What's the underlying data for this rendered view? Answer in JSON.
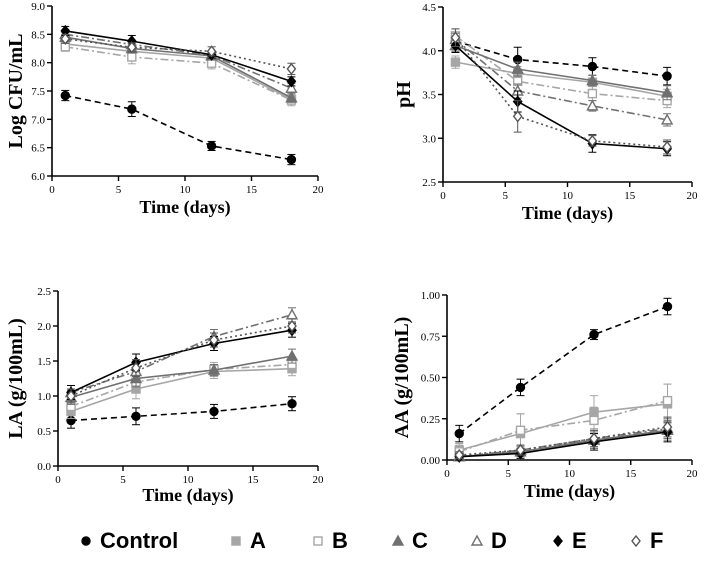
{
  "legend": {
    "items": [
      {
        "label": "Control",
        "color": "#000000",
        "marker": "circle",
        "fill": true,
        "dash": "6,4"
      },
      {
        "label": "A",
        "color": "#a6a6a6",
        "marker": "square",
        "fill": true,
        "dash": ""
      },
      {
        "label": "B",
        "color": "#a6a6a6",
        "marker": "square",
        "fill": false,
        "dash": "8,3,2,3"
      },
      {
        "label": "C",
        "color": "#707070",
        "marker": "triangle",
        "fill": true,
        "dash": ""
      },
      {
        "label": "D",
        "color": "#707070",
        "marker": "triangle",
        "fill": false,
        "dash": "8,3,2,3"
      },
      {
        "label": "E",
        "color": "#000000",
        "marker": "diamond",
        "fill": true,
        "dash": ""
      },
      {
        "label": "F",
        "color": "#555555",
        "marker": "diamond",
        "fill": false,
        "dash": "2,3"
      }
    ]
  },
  "chart_data": [
    {
      "type": "line",
      "panel": "top-left",
      "xlabel": "Time (days)",
      "ylabel": "Log CFU/mL",
      "xlim": [
        0,
        20
      ],
      "xticks": [
        0,
        5,
        10,
        15,
        20
      ],
      "ylim": [
        6.0,
        9.0
      ],
      "yticks": [
        6.0,
        6.5,
        7.0,
        7.5,
        8.0,
        8.5,
        9.0
      ],
      "ydec": 1,
      "x": [
        1,
        6,
        12,
        18
      ],
      "series": [
        {
          "name": "Control",
          "values": [
            7.42,
            7.18,
            6.53,
            6.29
          ],
          "err": [
            0.09,
            0.13,
            0.08,
            0.09
          ]
        },
        {
          "name": "A",
          "values": [
            8.33,
            8.2,
            8.08,
            7.35
          ],
          "err": [
            0.08,
            0.08,
            0.08,
            0.08
          ]
        },
        {
          "name": "B",
          "values": [
            8.28,
            8.1,
            7.99,
            7.34
          ],
          "err": [
            0.08,
            0.12,
            0.1,
            0.1
          ]
        },
        {
          "name": "C",
          "values": [
            8.45,
            8.25,
            8.12,
            7.38
          ],
          "err": [
            0.08,
            0.08,
            0.06,
            0.08
          ]
        },
        {
          "name": "D",
          "values": [
            8.5,
            8.32,
            8.13,
            7.55
          ],
          "err": [
            0.08,
            0.08,
            0.06,
            0.08
          ]
        },
        {
          "name": "E",
          "values": [
            8.56,
            8.38,
            8.14,
            7.67
          ],
          "err": [
            0.08,
            0.1,
            0.06,
            0.08
          ]
        },
        {
          "name": "F",
          "values": [
            8.42,
            8.27,
            8.2,
            7.89
          ],
          "err": [
            0.08,
            0.08,
            0.08,
            0.1
          ]
        }
      ]
    },
    {
      "type": "line",
      "panel": "top-right",
      "xlabel": "Time (days)",
      "ylabel": "pH",
      "xlim": [
        0,
        20
      ],
      "xticks": [
        0,
        5,
        10,
        15,
        20
      ],
      "ylim": [
        2.5,
        4.5
      ],
      "yticks": [
        2.5,
        3.0,
        3.5,
        4.0,
        4.5
      ],
      "ydec": 1,
      "x": [
        1,
        6,
        12,
        18
      ],
      "series": [
        {
          "name": "Control",
          "values": [
            4.11,
            3.9,
            3.82,
            3.71
          ],
          "err": [
            0.1,
            0.14,
            0.1,
            0.1
          ]
        },
        {
          "name": "A",
          "values": [
            3.87,
            3.74,
            3.64,
            3.48
          ],
          "err": [
            0.07,
            0.08,
            0.08,
            0.08
          ]
        },
        {
          "name": "B",
          "values": [
            4.17,
            3.65,
            3.51,
            3.43
          ],
          "err": [
            0.08,
            0.1,
            0.08,
            0.08
          ]
        },
        {
          "name": "C",
          "values": [
            4.06,
            3.79,
            3.66,
            3.52
          ],
          "err": [
            0.07,
            0.08,
            0.06,
            0.08
          ]
        },
        {
          "name": "D",
          "values": [
            4.13,
            3.54,
            3.37,
            3.21
          ],
          "err": [
            0.07,
            0.08,
            0.06,
            0.07
          ]
        },
        {
          "name": "E",
          "values": [
            4.06,
            3.42,
            2.94,
            2.88
          ],
          "err": [
            0.08,
            0.12,
            0.1,
            0.08
          ]
        },
        {
          "name": "F",
          "values": [
            4.15,
            3.25,
            2.97,
            2.9
          ],
          "err": [
            0.1,
            0.18,
            0.06,
            0.08
          ]
        }
      ]
    },
    {
      "type": "line",
      "panel": "bottom-left",
      "xlabel": "Time (days)",
      "ylabel": "LA (g/100mL)",
      "xlim": [
        0,
        20
      ],
      "xticks": [
        0,
        5,
        10,
        15,
        20
      ],
      "ylim": [
        0.0,
        2.5
      ],
      "yticks": [
        0.0,
        0.5,
        1.0,
        1.5,
        2.0,
        2.5
      ],
      "ydec": 1,
      "x": [
        1,
        6,
        12,
        18
      ],
      "series": [
        {
          "name": "Control",
          "values": [
            0.65,
            0.71,
            0.78,
            0.89
          ],
          "err": [
            0.11,
            0.12,
            0.1,
            0.1
          ]
        },
        {
          "name": "A",
          "values": [
            0.78,
            1.1,
            1.35,
            1.39
          ],
          "err": [
            0.1,
            0.14,
            0.1,
            0.1
          ]
        },
        {
          "name": "B",
          "values": [
            0.85,
            1.2,
            1.38,
            1.45
          ],
          "err": [
            0.1,
            0.12,
            0.1,
            0.1
          ]
        },
        {
          "name": "C",
          "values": [
            0.98,
            1.25,
            1.37,
            1.57
          ],
          "err": [
            0.1,
            0.12,
            0.08,
            0.1
          ]
        },
        {
          "name": "D",
          "values": [
            1.05,
            1.35,
            1.85,
            2.16
          ],
          "err": [
            0.1,
            0.12,
            0.1,
            0.1
          ]
        },
        {
          "name": "E",
          "values": [
            1.05,
            1.48,
            1.75,
            1.94
          ],
          "err": [
            0.1,
            0.12,
            0.1,
            0.1
          ]
        },
        {
          "name": "F",
          "values": [
            1.0,
            1.4,
            1.8,
            2.0
          ],
          "err": [
            0.1,
            0.12,
            0.1,
            0.1
          ]
        }
      ]
    },
    {
      "type": "line",
      "panel": "bottom-right",
      "xlabel": "Time (days)",
      "ylabel": "AA (g/100mL)",
      "xlim": [
        0,
        20
      ],
      "xticks": [
        0,
        5,
        10,
        15,
        20
      ],
      "ylim": [
        0.0,
        1.0
      ],
      "yticks": [
        0.0,
        0.25,
        0.5,
        0.75,
        1.0
      ],
      "ydec": 2,
      "x": [
        1,
        6,
        12,
        18
      ],
      "series": [
        {
          "name": "Control",
          "values": [
            0.16,
            0.44,
            0.76,
            0.93
          ],
          "err": [
            0.05,
            0.05,
            0.03,
            0.05
          ]
        },
        {
          "name": "A",
          "values": [
            0.06,
            0.16,
            0.29,
            0.34
          ],
          "err": [
            0.04,
            0.12,
            0.1,
            0.12
          ]
        },
        {
          "name": "B",
          "values": [
            0.05,
            0.18,
            0.24,
            0.36
          ],
          "err": [
            0.04,
            0.1,
            0.08,
            0.1
          ]
        },
        {
          "name": "C",
          "values": [
            0.02,
            0.05,
            0.12,
            0.18
          ],
          "err": [
            0.02,
            0.03,
            0.05,
            0.06
          ]
        },
        {
          "name": "D",
          "values": [
            0.02,
            0.06,
            0.13,
            0.19
          ],
          "err": [
            0.02,
            0.03,
            0.05,
            0.06
          ]
        },
        {
          "name": "E",
          "values": [
            0.02,
            0.04,
            0.11,
            0.17
          ],
          "err": [
            0.02,
            0.03,
            0.05,
            0.06
          ]
        },
        {
          "name": "F",
          "values": [
            0.03,
            0.06,
            0.13,
            0.2
          ],
          "err": [
            0.02,
            0.03,
            0.05,
            0.06
          ]
        }
      ]
    }
  ]
}
